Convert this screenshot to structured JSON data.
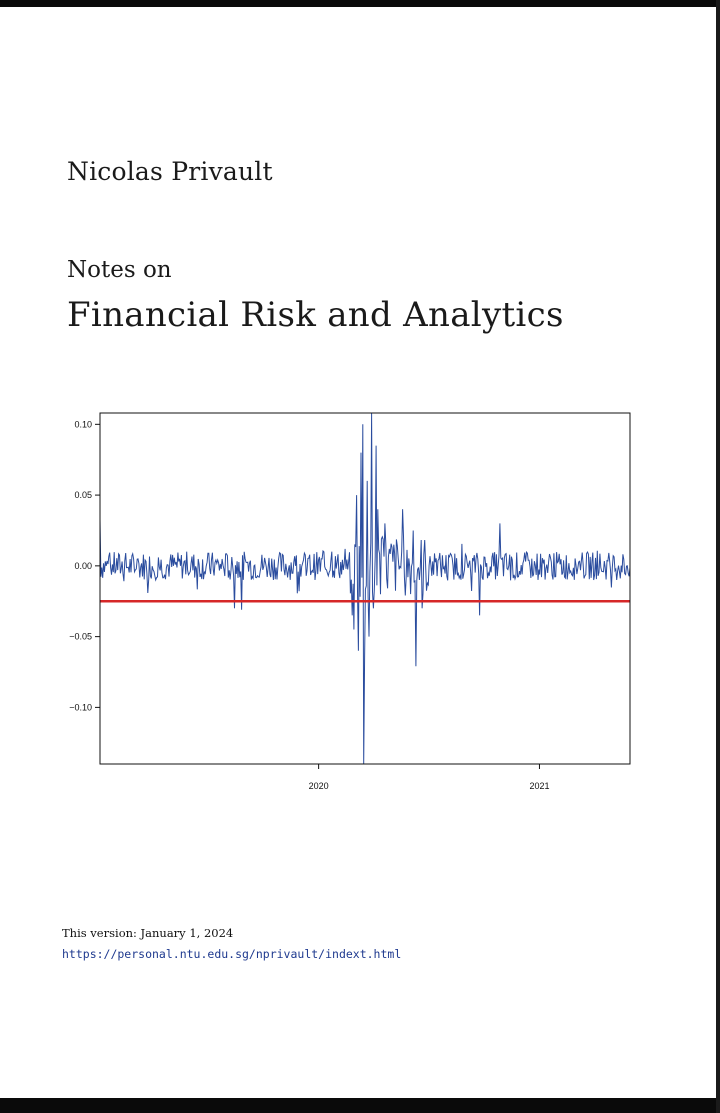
{
  "author": "Nicolas Privault",
  "title_prefix": "Notes on",
  "title": "Financial Risk and Analytics",
  "footer": {
    "version": "This version: January 1, 2024",
    "url": "https://personal.ntu.edu.sg/nprivault/indext.html"
  },
  "colors": {
    "series": "#2a4c9e",
    "threshold": "#d62728"
  },
  "chart_data": {
    "type": "line",
    "ylim": [
      -0.14,
      0.108
    ],
    "xlim": [
      2019.01,
      2021.41
    ],
    "yticks": [
      0.1,
      0.05,
      0.0,
      -0.05,
      -0.1
    ],
    "ytick_labels": [
      "0.10",
      "0.05",
      "0.00",
      "−0.05",
      "−0.10"
    ],
    "xticks": [
      2020,
      2021
    ],
    "xtick_labels": [
      "2020",
      "2021"
    ],
    "threshold": -0.025,
    "series": [
      {
        "spikes": [
          [
            2019.01,
            0.033
          ],
          [
            2019.62,
            -0.03
          ],
          [
            2019.65,
            -0.031
          ],
          [
            2020.06,
            0.01
          ],
          [
            2020.12,
            0.012
          ],
          [
            2020.15,
            -0.035
          ],
          [
            2020.16,
            -0.045
          ],
          [
            2020.17,
            0.05
          ],
          [
            2020.18,
            -0.06
          ],
          [
            2020.19,
            0.08
          ],
          [
            2020.2,
            0.1
          ],
          [
            2020.205,
            -0.14
          ],
          [
            2020.21,
            -0.065
          ],
          [
            2020.22,
            0.06
          ],
          [
            2020.23,
            -0.05
          ],
          [
            2020.24,
            0.108
          ],
          [
            2020.25,
            -0.03
          ],
          [
            2020.26,
            0.085
          ],
          [
            2020.27,
            0.04
          ],
          [
            2020.28,
            -0.02
          ],
          [
            2020.3,
            0.03
          ],
          [
            2020.38,
            0.04
          ],
          [
            2020.43,
            0.025
          ],
          [
            2020.44,
            -0.071
          ],
          [
            2020.47,
            -0.03
          ],
          [
            2020.73,
            -0.035
          ],
          [
            2020.82,
            0.03
          ]
        ]
      }
    ]
  }
}
